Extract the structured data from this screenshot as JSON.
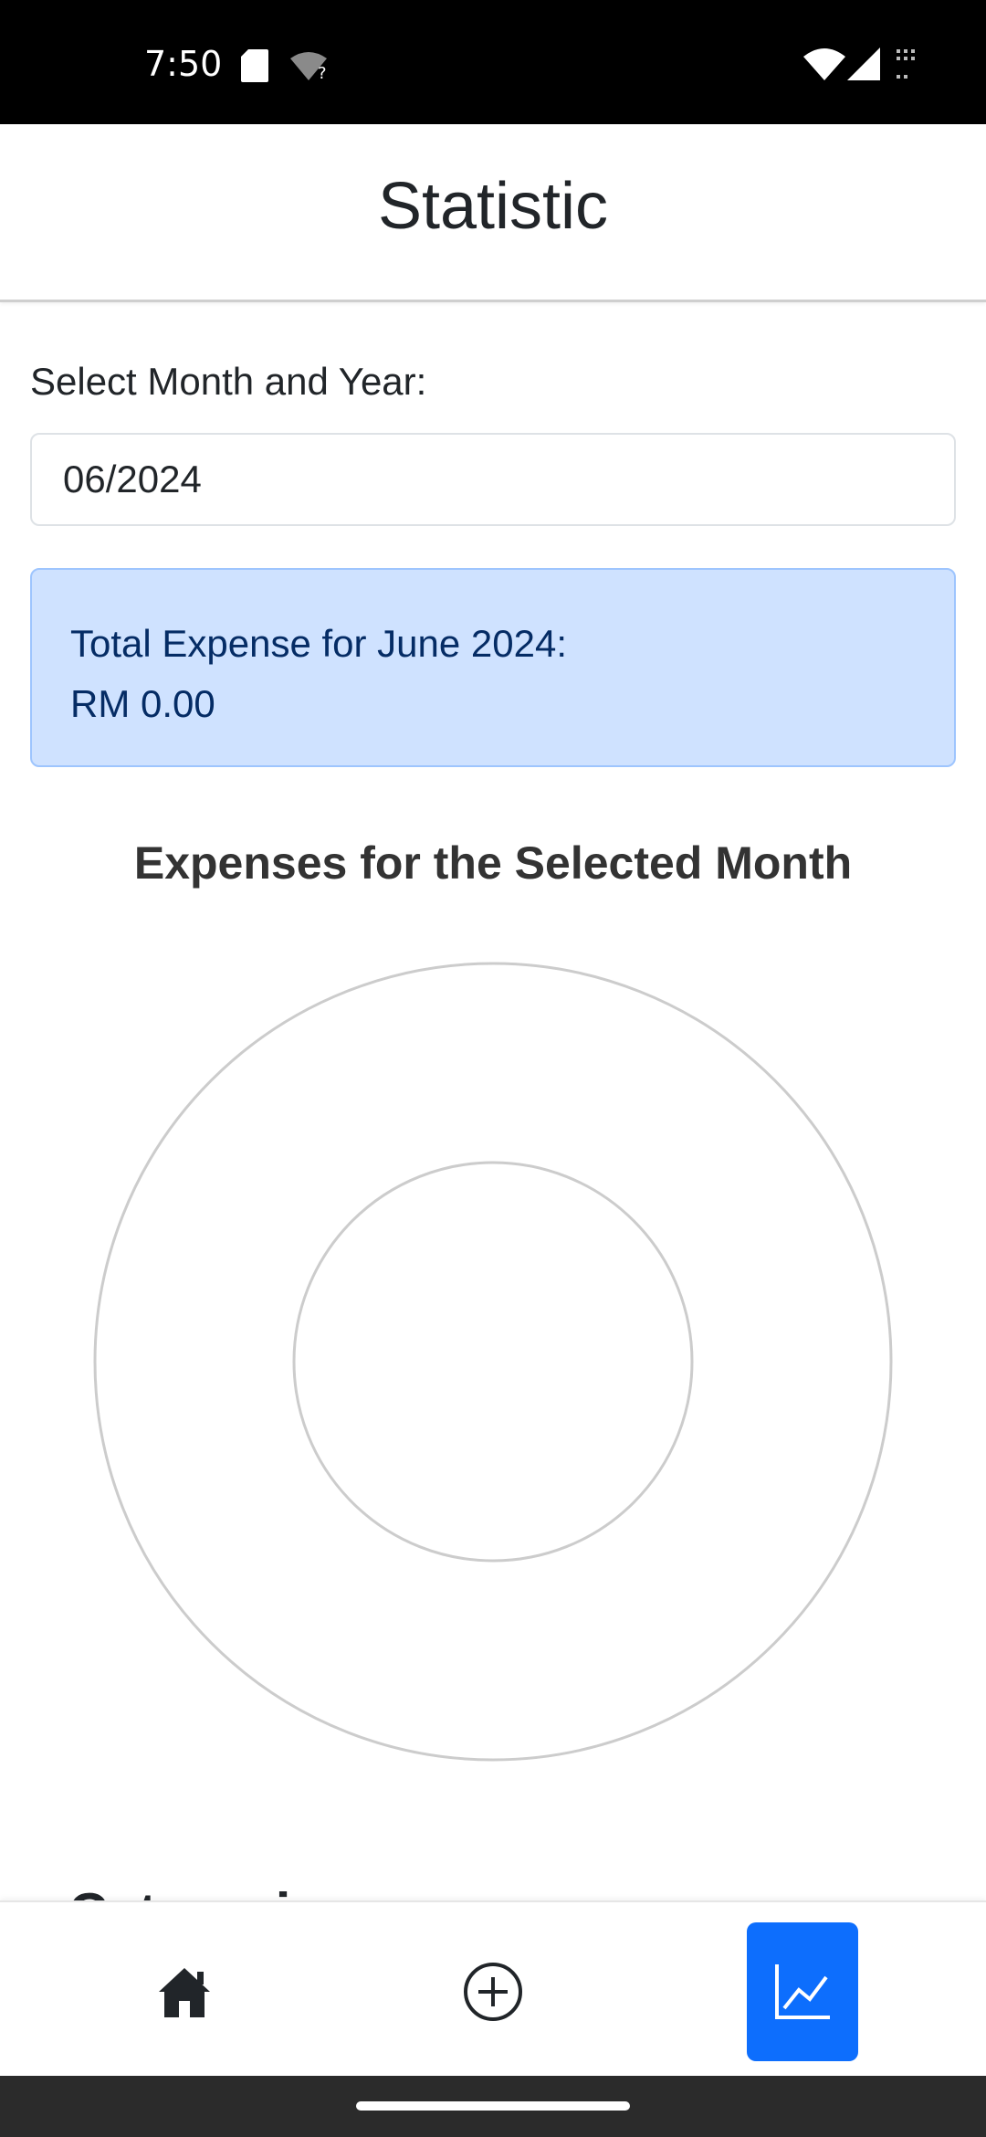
{
  "status_bar": {
    "time": "7:50"
  },
  "header": {
    "title": "Statistic"
  },
  "form": {
    "label": "Select Month and Year:",
    "value": "06/2024"
  },
  "alert": {
    "line1": "Total Expense for June 2024:",
    "line2": "RM 0.00",
    "background": "#cfe2ff",
    "text_color": "#052c65"
  },
  "chart": {
    "title": "Expenses for the Selected Month"
  },
  "chart_data": {
    "type": "pie",
    "title": "Expenses for the Selected Month",
    "categories": [],
    "values": [],
    "donut": true
  },
  "categories_section": {
    "title": "Categories"
  },
  "bottom_nav": {
    "items": [
      {
        "name": "home",
        "icon": "house-icon",
        "active": false
      },
      {
        "name": "add",
        "icon": "plus-circle-icon",
        "active": false
      },
      {
        "name": "statistics",
        "icon": "line-chart-icon",
        "active": true
      }
    ],
    "active_color": "#0d6efd"
  }
}
